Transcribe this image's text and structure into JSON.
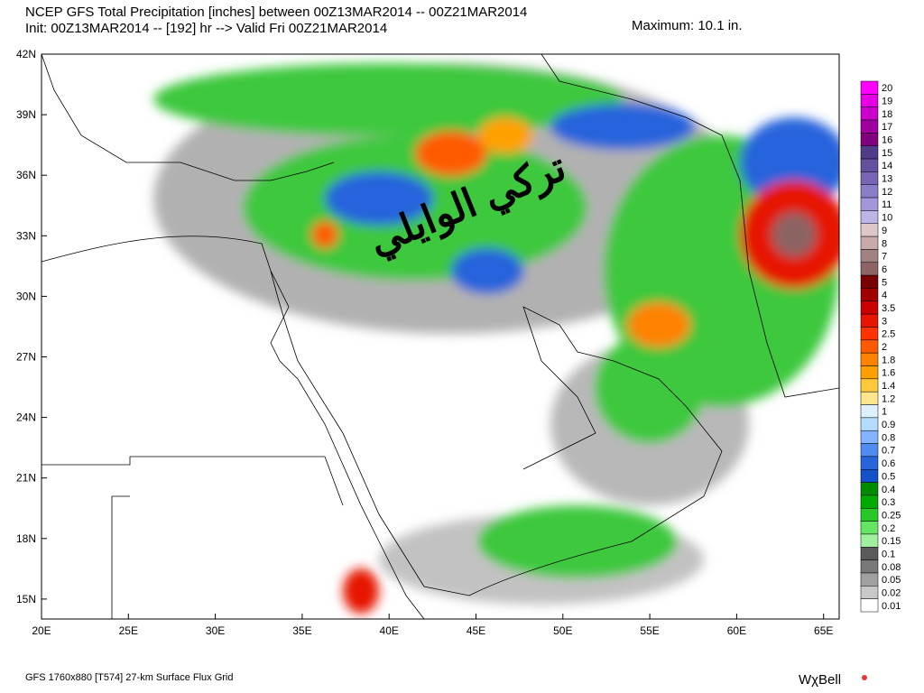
{
  "header": {
    "title": "NCEP GFS Total Precipitation [inches] between 00Z13MAR2014 -- 00Z21MAR2014",
    "subtitle": "Init: 00Z13MAR2014 -- [192] hr --> Valid Fri 00Z21MAR2014",
    "maximum": "Maximum:  10.1 in."
  },
  "watermark": "تركي الوايلي",
  "map": {
    "lat_labels": [
      "42N",
      "39N",
      "36N",
      "33N",
      "30N",
      "27N",
      "24N",
      "21N",
      "18N",
      "15N"
    ],
    "lon_labels": [
      "20E",
      "25E",
      "30E",
      "35E",
      "40E",
      "45E",
      "50E",
      "55E",
      "60E",
      "65E"
    ]
  },
  "colorbar": {
    "levels": [
      {
        "value": 20,
        "color": "#ff00ff"
      },
      {
        "value": 19,
        "color": "#e600e6"
      },
      {
        "value": 18,
        "color": "#cc00cc"
      },
      {
        "value": 17,
        "color": "#a000a0"
      },
      {
        "value": 16,
        "color": "#800080"
      },
      {
        "value": 15,
        "color": "#503c8c"
      },
      {
        "value": 14,
        "color": "#6450a0"
      },
      {
        "value": 13,
        "color": "#7864b4"
      },
      {
        "value": 12,
        "color": "#8c7dc8"
      },
      {
        "value": 11,
        "color": "#a596dc"
      },
      {
        "value": 10,
        "color": "#beb4e6"
      },
      {
        "value": 9,
        "color": "#dcc8c8"
      },
      {
        "value": 8,
        "color": "#c8aaaa"
      },
      {
        "value": 7,
        "color": "#a08282"
      },
      {
        "value": 6,
        "color": "#8c6464"
      },
      {
        "value": 5,
        "color": "#780000"
      },
      {
        "value": 4,
        "color": "#a00000"
      },
      {
        "value": 3.5,
        "color": "#c80000"
      },
      {
        "value": 3,
        "color": "#e61400"
      },
      {
        "value": 2.5,
        "color": "#ff3200"
      },
      {
        "value": 2,
        "color": "#ff5a00"
      },
      {
        "value": 1.8,
        "color": "#ff8200"
      },
      {
        "value": 1.6,
        "color": "#ffa000"
      },
      {
        "value": 1.4,
        "color": "#ffc83c"
      },
      {
        "value": 1.2,
        "color": "#ffe68c"
      },
      {
        "value": 1,
        "color": "#dcf0ff"
      },
      {
        "value": 0.9,
        "color": "#b4dcff"
      },
      {
        "value": 0.8,
        "color": "#82b4ff"
      },
      {
        "value": 0.7,
        "color": "#508cf0"
      },
      {
        "value": 0.6,
        "color": "#2864dc"
      },
      {
        "value": 0.5,
        "color": "#1450c8"
      },
      {
        "value": 0.4,
        "color": "#008c00"
      },
      {
        "value": 0.3,
        "color": "#00aa00"
      },
      {
        "value": 0.25,
        "color": "#28c828"
      },
      {
        "value": 0.2,
        "color": "#64e664"
      },
      {
        "value": 0.15,
        "color": "#a0f0a0"
      },
      {
        "value": 0.1,
        "color": "#5a5a5a"
      },
      {
        "value": 0.08,
        "color": "#787878"
      },
      {
        "value": 0.05,
        "color": "#a0a0a0"
      },
      {
        "value": 0.02,
        "color": "#c8c8c8"
      },
      {
        "value": 0.01,
        "color": "#ffffff"
      }
    ]
  },
  "footer": {
    "grid": "GFS 1760x880 [T574] 27-km Surface Flux Grid",
    "logo": "WχBell"
  }
}
